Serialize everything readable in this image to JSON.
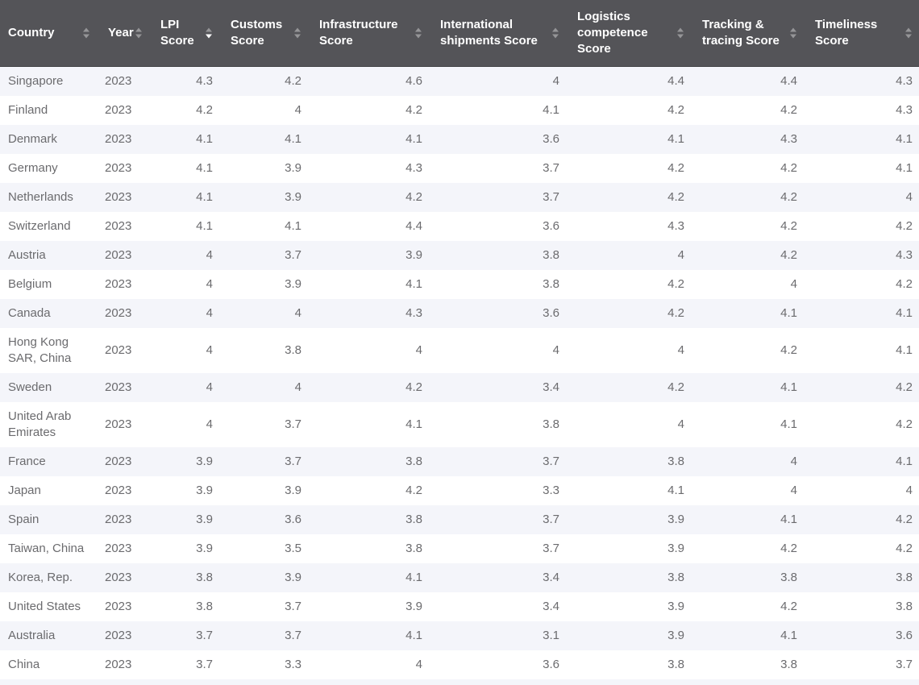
{
  "table": {
    "columns": [
      {
        "label": "Country",
        "align": "left",
        "sort": "none"
      },
      {
        "label": "Year",
        "align": "left",
        "sort": "none"
      },
      {
        "label": "LPI Score",
        "align": "right",
        "sort": "desc"
      },
      {
        "label": "Customs Score",
        "align": "right",
        "sort": "none"
      },
      {
        "label": "Infrastructure Score",
        "align": "right",
        "sort": "none"
      },
      {
        "label": "International shipments Score",
        "align": "right",
        "sort": "none"
      },
      {
        "label": "Logistics competence Score",
        "align": "right",
        "sort": "none"
      },
      {
        "label": "Tracking & tracing Score",
        "align": "right",
        "sort": "none"
      },
      {
        "label": "Timeliness Score",
        "align": "right",
        "sort": "none"
      }
    ],
    "rows": [
      [
        "Singapore",
        "2023",
        "4.3",
        "4.2",
        "4.6",
        "4",
        "4.4",
        "4.4",
        "4.3"
      ],
      [
        "Finland",
        "2023",
        "4.2",
        "4",
        "4.2",
        "4.1",
        "4.2",
        "4.2",
        "4.3"
      ],
      [
        "Denmark",
        "2023",
        "4.1",
        "4.1",
        "4.1",
        "3.6",
        "4.1",
        "4.3",
        "4.1"
      ],
      [
        "Germany",
        "2023",
        "4.1",
        "3.9",
        "4.3",
        "3.7",
        "4.2",
        "4.2",
        "4.1"
      ],
      [
        "Netherlands",
        "2023",
        "4.1",
        "3.9",
        "4.2",
        "3.7",
        "4.2",
        "4.2",
        "4"
      ],
      [
        "Switzerland",
        "2023",
        "4.1",
        "4.1",
        "4.4",
        "3.6",
        "4.3",
        "4.2",
        "4.2"
      ],
      [
        "Austria",
        "2023",
        "4",
        "3.7",
        "3.9",
        "3.8",
        "4",
        "4.2",
        "4.3"
      ],
      [
        "Belgium",
        "2023",
        "4",
        "3.9",
        "4.1",
        "3.8",
        "4.2",
        "4",
        "4.2"
      ],
      [
        "Canada",
        "2023",
        "4",
        "4",
        "4.3",
        "3.6",
        "4.2",
        "4.1",
        "4.1"
      ],
      [
        "Hong Kong SAR, China",
        "2023",
        "4",
        "3.8",
        "4",
        "4",
        "4",
        "4.2",
        "4.1"
      ],
      [
        "Sweden",
        "2023",
        "4",
        "4",
        "4.2",
        "3.4",
        "4.2",
        "4.1",
        "4.2"
      ],
      [
        "United Arab Emirates",
        "2023",
        "4",
        "3.7",
        "4.1",
        "3.8",
        "4",
        "4.1",
        "4.2"
      ],
      [
        "France",
        "2023",
        "3.9",
        "3.7",
        "3.8",
        "3.7",
        "3.8",
        "4",
        "4.1"
      ],
      [
        "Japan",
        "2023",
        "3.9",
        "3.9",
        "4.2",
        "3.3",
        "4.1",
        "4",
        "4"
      ],
      [
        "Spain",
        "2023",
        "3.9",
        "3.6",
        "3.8",
        "3.7",
        "3.9",
        "4.1",
        "4.2"
      ],
      [
        "Taiwan, China",
        "2023",
        "3.9",
        "3.5",
        "3.8",
        "3.7",
        "3.9",
        "4.2",
        "4.2"
      ],
      [
        "Korea, Rep.",
        "2023",
        "3.8",
        "3.9",
        "4.1",
        "3.4",
        "3.8",
        "3.8",
        "3.8"
      ],
      [
        "United States",
        "2023",
        "3.8",
        "3.7",
        "3.9",
        "3.4",
        "3.9",
        "4.2",
        "3.8"
      ],
      [
        "Australia",
        "2023",
        "3.7",
        "3.7",
        "4.1",
        "3.1",
        "3.9",
        "4.1",
        "3.6"
      ],
      [
        "China",
        "2023",
        "3.7",
        "3.3",
        "4",
        "3.6",
        "3.8",
        "3.8",
        "3.7"
      ]
    ],
    "sorted_by": {
      "column": "LPI Score",
      "direction": "desc"
    }
  },
  "colors": {
    "header_bg": "#545458",
    "header_text": "#ffffff",
    "stripe_row_bg": "#f4f5fa",
    "plain_row_bg": "#ffffff",
    "cell_text": "#6b6b6e",
    "sort_icon_inactive": "rgba(255,255,255,0.38)",
    "sort_icon_active": "#ffffff"
  }
}
